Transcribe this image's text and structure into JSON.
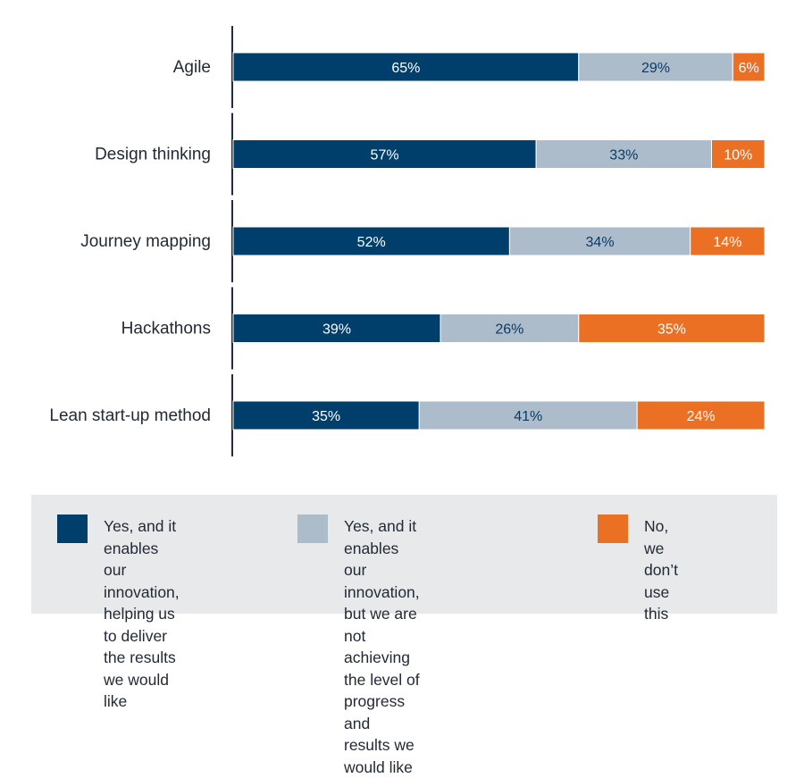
{
  "colors": {
    "yes_results": "#003f6b",
    "yes_no_progress": "#acbccb",
    "no": "#ec7024",
    "axis": "#1f2d3d",
    "legend_bg": "#e8e9eb"
  },
  "chart_data": {
    "type": "bar",
    "orientation": "horizontal",
    "stacked": true,
    "categories": [
      "Agile",
      "Design thinking",
      "Journey mapping",
      "Hackathons",
      "Lean start-up method"
    ],
    "series": [
      {
        "name": "Yes, and it enables our innovation, helping us to deliver the results we would like",
        "values": [
          65,
          57,
          52,
          39,
          35
        ],
        "labels": [
          "65%",
          "57%",
          "52%",
          "39%",
          "35%"
        ]
      },
      {
        "name": "Yes, and it enables our innovation, but we are not achieving the level of progress and results we would like",
        "values": [
          29,
          33,
          34,
          26,
          41
        ],
        "labels": [
          "29%",
          "33%",
          "34%",
          "26%",
          "41%"
        ]
      },
      {
        "name": "No, we don’t use this",
        "values": [
          6,
          10,
          14,
          35,
          24
        ],
        "labels": [
          "6%",
          "10%",
          "14%",
          "35%",
          "24%"
        ]
      }
    ],
    "xlim": [
      0,
      100
    ],
    "unit": "%"
  },
  "legend": {
    "items": [
      {
        "lines": [
          "Yes, and it enables our",
          "innovation, helping us",
          "to deliver the results",
          "we would like"
        ]
      },
      {
        "lines": [
          "Yes, and it enables our",
          "innovation, but we are not",
          "achieving the level of progress",
          "and results we would like"
        ]
      },
      {
        "lines": [
          "No, we don’t",
          "use this"
        ]
      }
    ]
  }
}
